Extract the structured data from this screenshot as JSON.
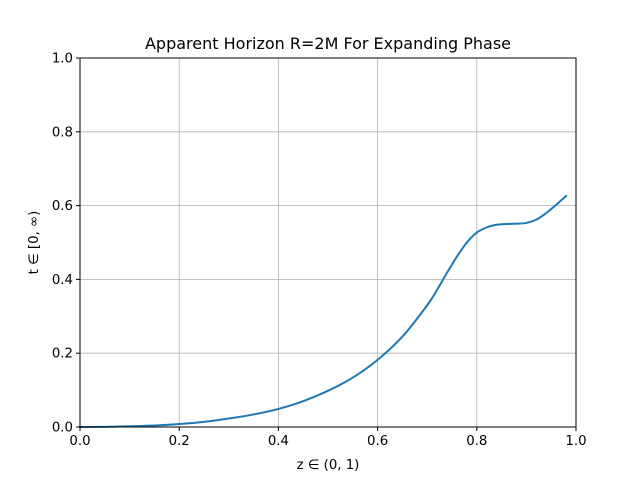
{
  "chart_data": {
    "type": "line",
    "title": "Apparent Horizon R=2M For Expanding Phase",
    "xlabel": "z ∈ (0, 1)",
    "ylabel": "t ∈ [0, ∞)",
    "xlim": [
      0.0,
      1.0
    ],
    "ylim": [
      0.0,
      1.0
    ],
    "xticks": [
      "0.0",
      "0.2",
      "0.4",
      "0.6",
      "0.8",
      "1.0"
    ],
    "yticks": [
      "0.0",
      "0.2",
      "0.4",
      "0.6",
      "0.8",
      "1.0"
    ],
    "grid": true,
    "series": [
      {
        "color": "#1f77b4",
        "x": [
          0.0,
          0.05,
          0.1,
          0.15,
          0.2,
          0.25,
          0.3,
          0.35,
          0.4,
          0.45,
          0.5,
          0.55,
          0.6,
          0.65,
          0.7,
          0.72,
          0.74,
          0.76,
          0.78,
          0.8,
          0.82,
          0.84,
          0.86,
          0.88,
          0.9,
          0.92,
          0.94,
          0.96,
          0.98
        ],
        "y": [
          0.0,
          0.0005,
          0.002,
          0.004,
          0.008,
          0.014,
          0.023,
          0.034,
          0.049,
          0.07,
          0.098,
          0.134,
          0.182,
          0.245,
          0.33,
          0.372,
          0.418,
          0.462,
          0.5,
          0.527,
          0.541,
          0.548,
          0.55,
          0.551,
          0.553,
          0.562,
          0.58,
          0.602,
          0.626
        ]
      }
    ]
  }
}
